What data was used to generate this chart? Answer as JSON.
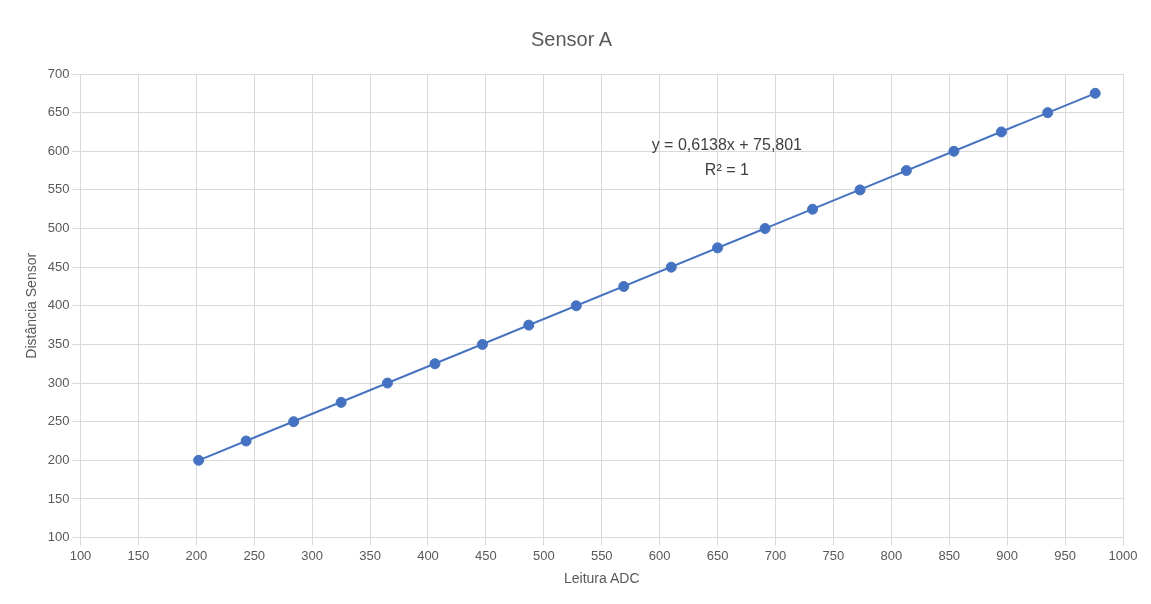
{
  "chart_data": {
    "type": "scatter",
    "title": "Sensor A",
    "xlabel": "Leitura ADC",
    "ylabel": "Distância Sensor",
    "series": [
      {
        "color": "#4472c4",
        "marker": "circle",
        "x": [
          202,
          243,
          284,
          325,
          365,
          406,
          447,
          487,
          528,
          569,
          610,
          650,
          691,
          732,
          773,
          813,
          854,
          895,
          935,
          976
        ],
        "values": [
          200,
          225,
          250,
          275,
          300,
          325,
          350,
          375,
          400,
          425,
          450,
          475,
          500,
          525,
          550,
          575,
          600,
          625,
          650,
          675
        ]
      },
      {
        "type": "line",
        "color": "#4472c4",
        "marker": "none",
        "line_style": "solid",
        "x": [
          202,
          976
        ],
        "values": [
          200,
          675
        ]
      }
    ],
    "xlim": [
      100,
      1000
    ],
    "xticks": [
      100,
      150,
      200,
      250,
      300,
      350,
      400,
      450,
      500,
      550,
      600,
      650,
      700,
      750,
      800,
      850,
      900,
      950,
      1000
    ],
    "ylim": [
      100,
      700
    ],
    "yticks": [
      100,
      150,
      200,
      250,
      300,
      350,
      400,
      450,
      500,
      550,
      600,
      650,
      700
    ],
    "grid": true,
    "legend": false,
    "annotations": [
      "y = 0,6138x + 75,801",
      "R² = 1"
    ]
  }
}
